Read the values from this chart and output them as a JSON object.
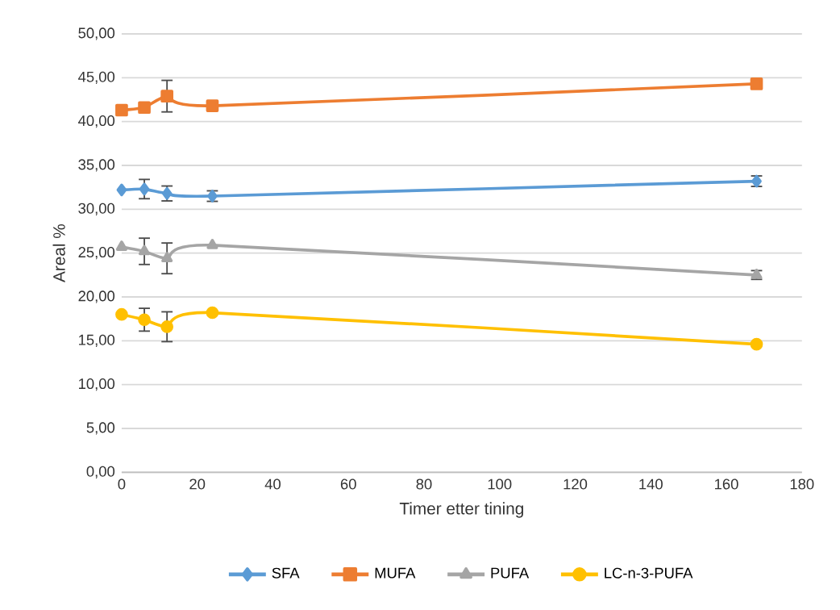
{
  "chart_data": {
    "type": "line",
    "xlabel": "Timer etter tining",
    "ylabel": "Areal %",
    "x": [
      0,
      6,
      12,
      24,
      168
    ],
    "series": [
      {
        "name": "SFA",
        "color": "#5b9bd5",
        "marker": "diamond",
        "values": [
          32.2,
          32.3,
          31.8,
          31.5,
          33.2
        ],
        "errors": [
          null,
          1.1,
          0.85,
          0.6,
          0.6
        ]
      },
      {
        "name": "MUFA",
        "color": "#ed7d31",
        "marker": "square",
        "values": [
          41.3,
          41.6,
          42.9,
          41.8,
          44.3
        ],
        "errors": [
          null,
          null,
          1.8,
          null,
          null
        ]
      },
      {
        "name": "PUFA",
        "color": "#a5a5a5",
        "marker": "triangle",
        "values": [
          25.7,
          25.2,
          24.4,
          25.9,
          22.5
        ],
        "errors": [
          null,
          1.5,
          1.75,
          null,
          0.5
        ]
      },
      {
        "name": "LC-n-3-PUFA",
        "color": "#ffc000",
        "marker": "circle",
        "values": [
          18.0,
          17.4,
          16.6,
          18.2,
          14.6
        ],
        "errors": [
          null,
          1.3,
          1.7,
          null,
          null
        ]
      }
    ],
    "xlim": [
      0,
      180
    ],
    "xticks": [
      0,
      20,
      40,
      60,
      80,
      100,
      120,
      140,
      160,
      180
    ],
    "ylim": [
      0,
      50
    ],
    "yticks": [
      {
        "value": 0,
        "label": "0,00"
      },
      {
        "value": 5,
        "label": "5,00"
      },
      {
        "value": 10,
        "label": "10,00"
      },
      {
        "value": 15,
        "label": "15,00"
      },
      {
        "value": 20,
        "label": "20,00"
      },
      {
        "value": 25,
        "label": "25,00"
      },
      {
        "value": 30,
        "label": "30,00"
      },
      {
        "value": 35,
        "label": "35,00"
      },
      {
        "value": 40,
        "label": "40,00"
      },
      {
        "value": 45,
        "label": "45,00"
      },
      {
        "value": 50,
        "label": "50,00"
      }
    ],
    "grid": "y",
    "legend": "bottom",
    "line_style": "solid"
  }
}
